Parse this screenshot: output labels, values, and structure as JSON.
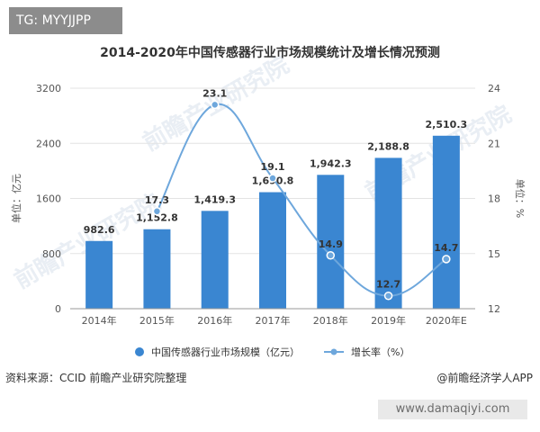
{
  "badge": {
    "text": "TG: MYYJJPP"
  },
  "title": "2014-2020年中国传感器行业市场规模统计及增长情况预测",
  "source": "资料来源：CCID 前瞻产业研究院整理",
  "app_credit": "@前瞻经济学人APP",
  "footer_url": "www.damaqiyi.com",
  "watermark_text": "前瞻产业研究院",
  "colors": {
    "bar": "#3a86d1",
    "line": "#6ea7dc",
    "marker": "#6ea7dc",
    "axis_text": "#555555",
    "grid": "#e3e3e3",
    "footer": "#ffffff"
  },
  "chart_data": {
    "type": "bar",
    "categories": [
      "2014年",
      "2015年",
      "2016年",
      "2017年",
      "2018年",
      "2019年",
      "2020年E"
    ],
    "series": [
      {
        "name": "中国传感器行业市场规模（亿元）",
        "type": "bar",
        "axis": "left",
        "values": [
          982.6,
          1152.8,
          1419.3,
          1690.8,
          1942.3,
          2188.8,
          2510.3
        ],
        "labels": [
          "982.6",
          "1,152.8",
          "1,419.3",
          "1,690.8",
          "1,942.3",
          "2,188.8",
          "2,510.3"
        ]
      },
      {
        "name": "增长率（%）",
        "type": "line",
        "axis": "right",
        "values": [
          null,
          17.3,
          23.1,
          19.1,
          14.9,
          12.7,
          14.7
        ],
        "labels": [
          "",
          "17.3",
          "23.1",
          "19.1",
          "14.9",
          "12.7",
          "14.7"
        ]
      }
    ],
    "ylabel": "单位：亿元",
    "y2label": "单位：%",
    "ylim": [
      0,
      3200
    ],
    "y2lim": [
      12,
      24
    ],
    "yticks": [
      "0",
      "800",
      "1600",
      "2400",
      "3200"
    ],
    "y2ticks": [
      "12",
      "15",
      "18",
      "21",
      "24"
    ],
    "grid": true,
    "legend": "bottom-center"
  }
}
